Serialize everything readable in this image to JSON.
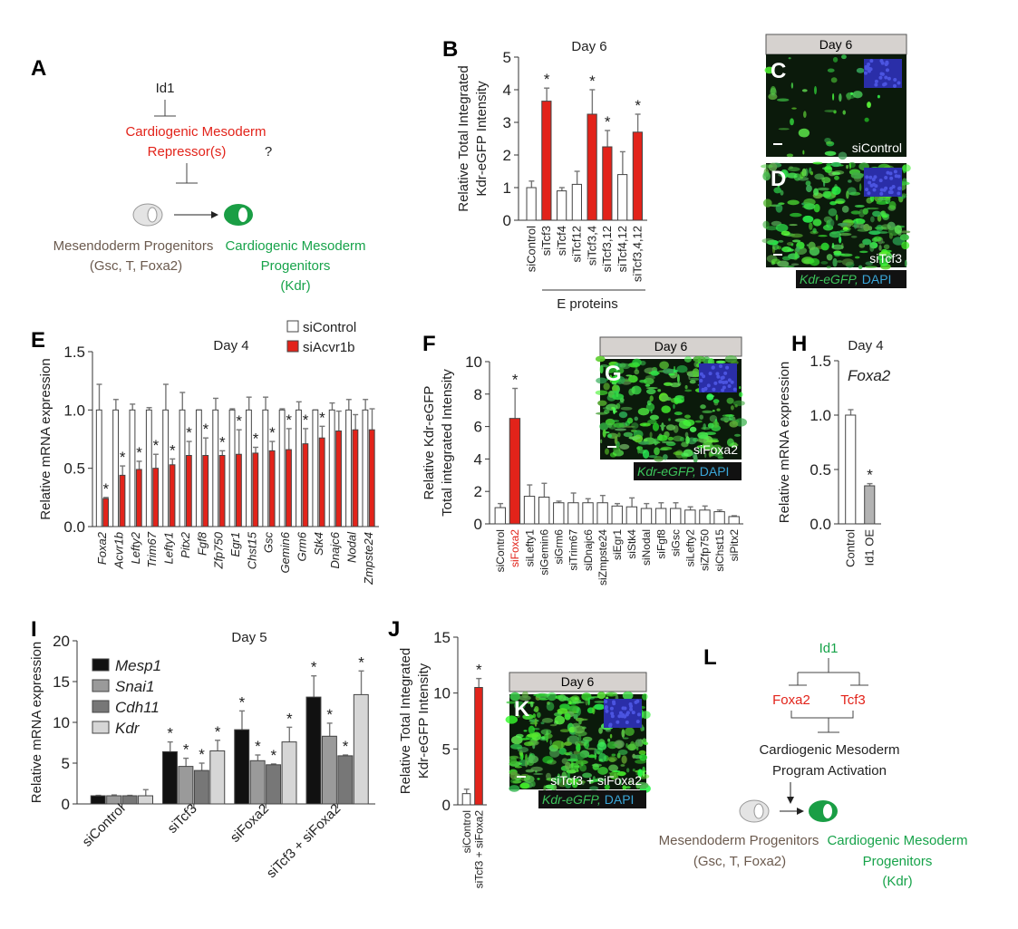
{
  "panels": {
    "A": {
      "letter": "A",
      "inhibitor": "Id1",
      "repressor_line1": "Cardiogenic Mesoderm",
      "repressor_line2": "Repressor(s)",
      "question": "?",
      "source_line1": "Mesendoderm Progenitors",
      "source_line2": "(Gsc, T, Foxa2)",
      "target_line1": "Cardiogenic Mesoderm",
      "target_line2": "Progenitors",
      "target_line3": "(Kdr)"
    },
    "B": {
      "letter": "B"
    },
    "C": {
      "letter": "C",
      "header": "Day 6",
      "condition": "siControl"
    },
    "D": {
      "letter": "D",
      "condition": "siTcf3",
      "legend_kdr": "Kdr-eGFP,",
      "legend_dapi": "DAPI"
    },
    "E": {
      "letter": "E"
    },
    "F": {
      "letter": "F"
    },
    "G": {
      "letter": "G",
      "header": "Day 6",
      "condition": "siFoxa2",
      "legend_kdr": "Kdr-eGFP,",
      "legend_dapi": "DAPI"
    },
    "H": {
      "letter": "H"
    },
    "I": {
      "letter": "I"
    },
    "J": {
      "letter": "J"
    },
    "K": {
      "letter": "K",
      "header": "Day 6",
      "condition": "siTcf3 + siFoxa2",
      "legend_kdr": "Kdr-eGFP,",
      "legend_dapi": "DAPI"
    },
    "L": {
      "letter": "L",
      "top": "Id1",
      "left": "Foxa2",
      "right": "Tcf3",
      "program_line1": "Cardiogenic Mesoderm",
      "program_line2": "Program Activation",
      "source_line1": "Mesendoderm Progenitors",
      "source_line2": "(Gsc, T, Foxa2)",
      "target_line1": "Cardiogenic Mesoderm",
      "target_line2": "Progenitors",
      "target_line3": "(Kdr)"
    }
  },
  "colors": {
    "red": "#e2231a",
    "green": "#17a34a",
    "brown": "#6b5a4e",
    "white": "#ffffff",
    "gray": "#b3b3b3"
  },
  "chart_data": [
    {
      "id": "B",
      "type": "bar",
      "title": "Day 6",
      "ylabel": [
        "Relative Total Integrated",
        "Kdr-eGFP Intensity"
      ],
      "ylim": [
        0,
        5
      ],
      "yticks": [
        0,
        1,
        2,
        3,
        4,
        5
      ],
      "categories": [
        "siControl",
        "siTcf3",
        "siTcf4",
        "siTcf12",
        "siTcf3,4",
        "siTcf3,12",
        "siTcf4,12",
        "siTcf3,4,12"
      ],
      "bracket_label": "E proteins",
      "series": [
        {
          "name": "",
          "values": [
            1.0,
            3.65,
            0.9,
            1.1,
            3.25,
            2.25,
            1.4,
            2.7
          ],
          "errors": [
            1.2,
            4.05,
            1.0,
            1.5,
            4.0,
            2.75,
            2.1,
            3.25
          ],
          "colors": [
            "#ffffff",
            "#e2231a",
            "#ffffff",
            "#ffffff",
            "#e2231a",
            "#e2231a",
            "#ffffff",
            "#e2231a"
          ],
          "stars": [
            false,
            true,
            false,
            false,
            true,
            true,
            false,
            true
          ]
        }
      ]
    },
    {
      "id": "E",
      "type": "bar",
      "title": "Day 4",
      "ylabel": [
        "Relative mRNA expression"
      ],
      "ylim": [
        0,
        1.5
      ],
      "yticks": [
        0.0,
        0.5,
        1.0,
        1.5
      ],
      "ytick_labels": [
        "0.0",
        "0.5",
        "1.0",
        "1.5"
      ],
      "categories": [
        "Foxa2",
        "Acvr1b",
        "Lefty2",
        "Trim67",
        "Lefty1",
        "Pitx2",
        "Fgf8",
        "Zfp750",
        "Egr1",
        "Chst15",
        "Gsc",
        "Gemin6",
        "Grm6",
        "Stk4",
        "Dnajc6",
        "Nodal",
        "Zmpste24"
      ],
      "legend": "top-right",
      "series": [
        {
          "name": "siControl",
          "color": "#ffffff",
          "values": [
            1,
            1,
            1,
            1,
            1,
            1,
            1,
            1,
            1,
            1,
            1,
            1,
            1,
            1,
            1,
            1,
            1
          ],
          "errors": [
            1.22,
            1.09,
            1.05,
            1.02,
            1.22,
            1.15,
            1.0,
            1.1,
            1.01,
            1.11,
            1.11,
            1.01,
            1.07,
            1.0,
            1.06,
            1.09,
            1.09
          ],
          "stars": [
            false,
            false,
            false,
            false,
            false,
            false,
            false,
            false,
            false,
            false,
            false,
            false,
            false,
            false,
            false,
            false,
            false
          ]
        },
        {
          "name": "siAcvr1b",
          "color": "#e2231a",
          "values": [
            0.24,
            0.44,
            0.49,
            0.5,
            0.53,
            0.61,
            0.61,
            0.61,
            0.62,
            0.63,
            0.65,
            0.66,
            0.71,
            0.76,
            0.82,
            0.83,
            0.83
          ],
          "errors": [
            0.25,
            0.52,
            0.56,
            0.62,
            0.58,
            0.73,
            0.76,
            0.65,
            0.83,
            0.68,
            0.73,
            0.84,
            0.84,
            0.86,
            0.99,
            0.96,
            1.01
          ],
          "stars": [
            true,
            true,
            true,
            true,
            true,
            true,
            true,
            true,
            true,
            true,
            true,
            true,
            true,
            true,
            false,
            false,
            false
          ]
        }
      ]
    },
    {
      "id": "F",
      "type": "bar",
      "title": "",
      "ylabel": [
        "Relative Kdr-eGFP",
        "Total integrated Intensity"
      ],
      "ylim": [
        0,
        10
      ],
      "yticks": [
        0,
        2,
        4,
        6,
        8,
        10
      ],
      "categories": [
        "siControl",
        "siFoxa2",
        "siLefty1",
        "siGemin6",
        "siGrm6",
        "siTrim67",
        "siDnajc6",
        "siZmpste24",
        "siEgr1",
        "siStk4",
        "siNodal",
        "siFgf8",
        "siGsc",
        "siLefty2",
        "siZfp750",
        "siChst15",
        "siPitx2"
      ],
      "highlight_category": "siFoxa2",
      "series": [
        {
          "name": "",
          "values": [
            1.0,
            6.5,
            1.7,
            1.65,
            1.3,
            1.3,
            1.3,
            1.3,
            1.1,
            1.05,
            0.95,
            0.95,
            0.95,
            0.85,
            0.85,
            0.75,
            0.45
          ],
          "errors": [
            1.25,
            8.35,
            2.4,
            2.5,
            1.4,
            1.9,
            1.55,
            1.75,
            1.25,
            1.6,
            1.25,
            1.3,
            1.3,
            1.05,
            1.1,
            0.85,
            0.5
          ],
          "colors": [
            "#ffffff",
            "#e2231a",
            "#ffffff",
            "#ffffff",
            "#ffffff",
            "#ffffff",
            "#ffffff",
            "#ffffff",
            "#ffffff",
            "#ffffff",
            "#ffffff",
            "#ffffff",
            "#ffffff",
            "#ffffff",
            "#ffffff",
            "#ffffff",
            "#ffffff"
          ],
          "stars": [
            false,
            true,
            false,
            false,
            false,
            false,
            false,
            false,
            false,
            false,
            false,
            false,
            false,
            false,
            false,
            false,
            false
          ]
        }
      ]
    },
    {
      "id": "H",
      "type": "bar",
      "title": "Day 4",
      "annotation": "Foxa2",
      "ylabel": [
        "Relative mRNA expression"
      ],
      "ylim": [
        0,
        1.5
      ],
      "yticks": [
        0.0,
        0.5,
        1.0,
        1.5
      ],
      "ytick_labels": [
        "0.0",
        "0.5",
        "1.0",
        "1.5"
      ],
      "categories": [
        "Control",
        "Id1 OE"
      ],
      "series": [
        {
          "name": "",
          "values": [
            1.0,
            0.35
          ],
          "errors": [
            1.05,
            0.37
          ],
          "colors": [
            "#ffffff",
            "#b3b3b3"
          ],
          "stars": [
            false,
            true
          ]
        }
      ]
    },
    {
      "id": "I",
      "type": "bar",
      "title": "Day 5",
      "ylabel": [
        "Relative mRNA expression"
      ],
      "ylim": [
        0,
        20
      ],
      "yticks": [
        0,
        5,
        10,
        15,
        20
      ],
      "categories": [
        "siControl",
        "siTcf3",
        "siFoxa2",
        "siTcf3 + siFoxa2"
      ],
      "legend": "top-left",
      "series": [
        {
          "name": "Mesp1",
          "color": "#111111",
          "values": [
            1.0,
            6.4,
            9.1,
            13.1
          ],
          "errors": [
            1.05,
            7.6,
            11.4,
            15.7
          ],
          "stars": [
            false,
            true,
            true,
            true
          ]
        },
        {
          "name": "Snai1",
          "color": "#9a9a9a",
          "values": [
            1.0,
            4.6,
            5.3,
            8.3
          ],
          "errors": [
            1.1,
            5.6,
            6.0,
            9.9
          ],
          "stars": [
            false,
            true,
            true,
            true
          ]
        },
        {
          "name": "Cdh11",
          "color": "#777777",
          "values": [
            1.0,
            4.1,
            4.8,
            5.9
          ],
          "errors": [
            1.05,
            5.0,
            4.9,
            6.0
          ],
          "stars": [
            false,
            true,
            true,
            true
          ]
        },
        {
          "name": "Kdr",
          "color": "#d6d6d6",
          "values": [
            1.0,
            6.5,
            7.6,
            13.4
          ],
          "errors": [
            1.75,
            7.8,
            9.4,
            16.3
          ],
          "stars": [
            false,
            true,
            true,
            true
          ]
        }
      ]
    },
    {
      "id": "J",
      "type": "bar",
      "title": "",
      "ylabel": [
        "Relative Total Integrated",
        "Kdr-eGFP Intensity"
      ],
      "ylim": [
        0,
        15
      ],
      "yticks": [
        0,
        5,
        10,
        15
      ],
      "categories": [
        "siControl",
        "siTcf3 + siFoxa2"
      ],
      "series": [
        {
          "name": "",
          "values": [
            1.0,
            10.5
          ],
          "errors": [
            1.4,
            11.3
          ],
          "colors": [
            "#ffffff",
            "#e2231a"
          ],
          "stars": [
            false,
            true
          ]
        }
      ]
    }
  ]
}
